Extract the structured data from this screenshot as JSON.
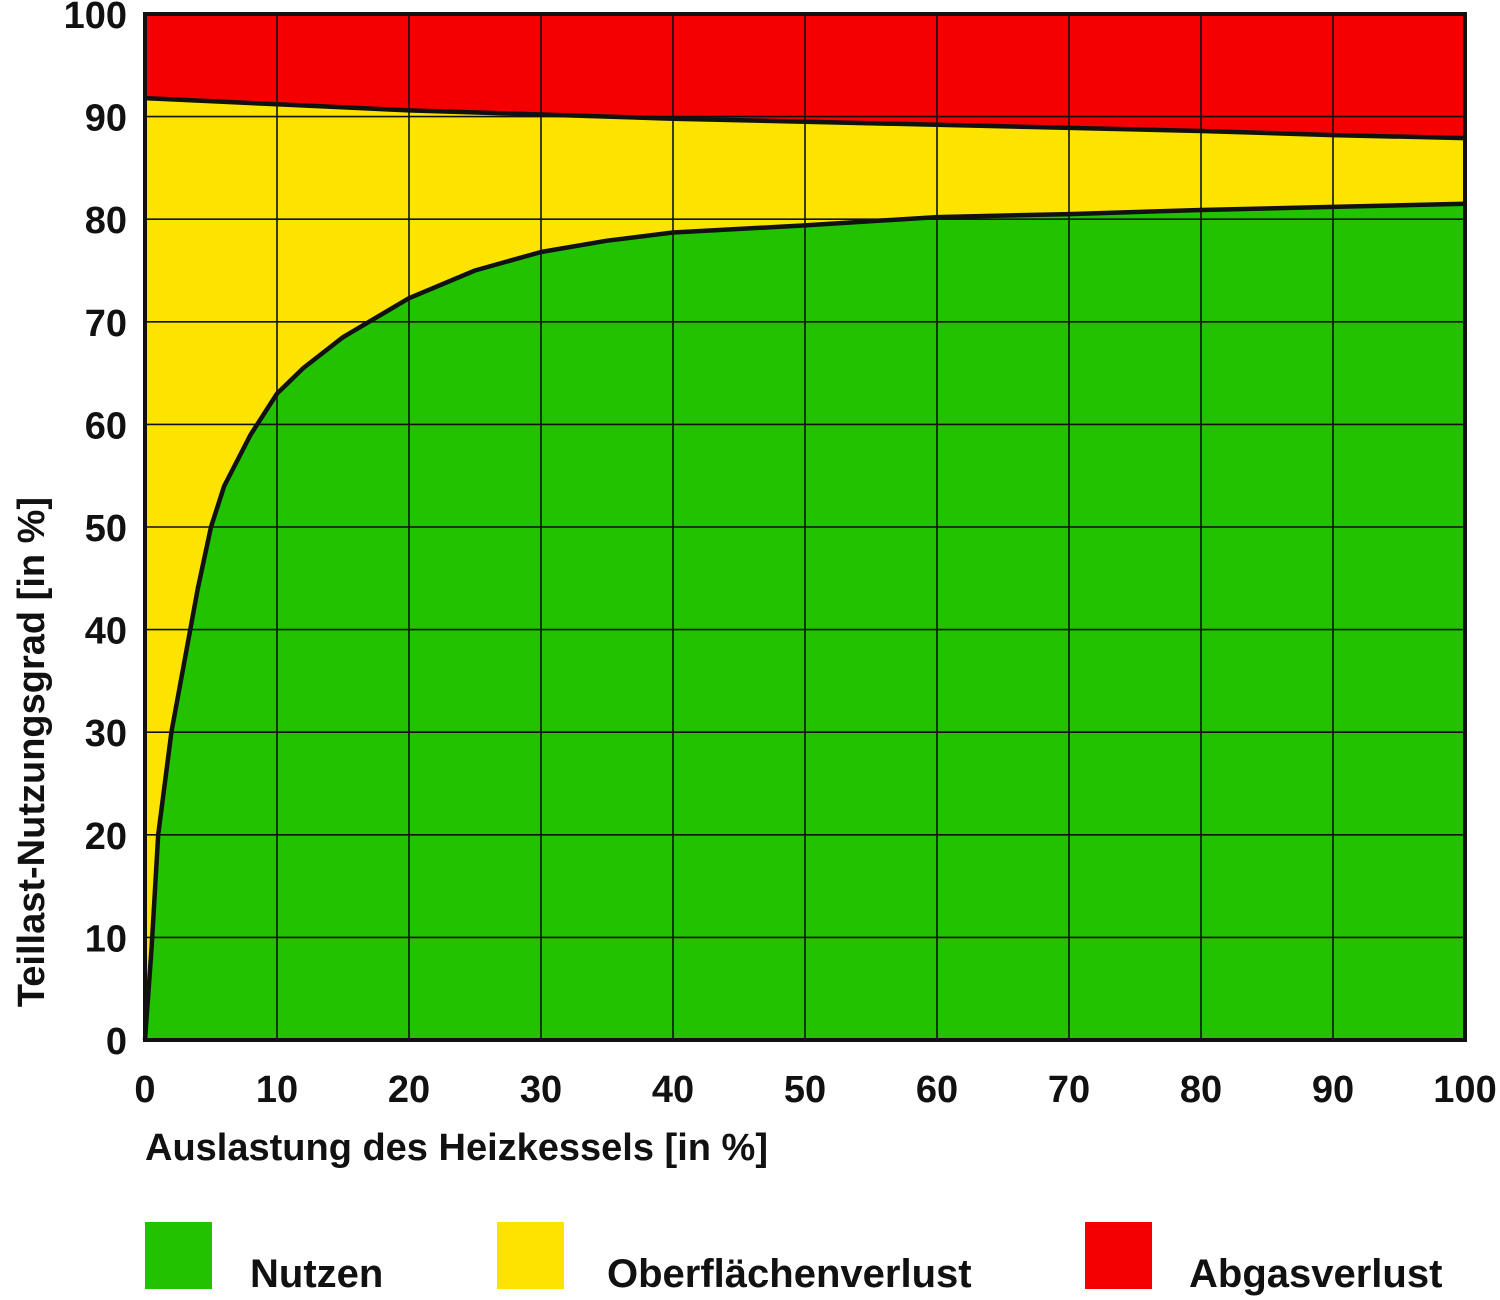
{
  "chart_data": {
    "type": "area",
    "xlabel": "Auslastung des Heizkessels [in %]",
    "ylabel": "Teillast-Nutzungsgrad [in %]",
    "xlim": [
      0,
      100
    ],
    "ylim": [
      0,
      100
    ],
    "x_ticks": [
      "0",
      "10",
      "20",
      "30",
      "40",
      "50",
      "60",
      "70",
      "80",
      "90",
      "100"
    ],
    "y_ticks": [
      "0",
      "10",
      "20",
      "30",
      "40",
      "50",
      "60",
      "70",
      "80",
      "90",
      "100"
    ],
    "grid": true,
    "legend_position": "bottom",
    "series": [
      {
        "name": "Nutzen",
        "color": "#22c200",
        "x": [
          0,
          0.5,
          1,
          2,
          3,
          4,
          5,
          6,
          8,
          10,
          12,
          15,
          20,
          25,
          30,
          35,
          40,
          50,
          60,
          70,
          80,
          90,
          100
        ],
        "values": [
          0,
          9,
          20,
          30,
          37,
          44,
          50,
          54,
          59,
          63,
          65.5,
          68.5,
          72.3,
          75,
          76.8,
          77.9,
          78.7,
          79.4,
          80.2,
          80.5,
          80.9,
          81.2,
          81.5
        ]
      },
      {
        "name": "Oberflächenverlust",
        "color": "#fce400",
        "x": [
          0,
          10,
          20,
          30,
          40,
          50,
          60,
          70,
          80,
          90,
          100
        ],
        "values": [
          91.8,
          91.2,
          90.6,
          90.2,
          89.8,
          89.5,
          89.2,
          88.9,
          88.6,
          88.2,
          87.9
        ]
      },
      {
        "name": "Abgasverlust",
        "color": "#f50000",
        "x": [
          0,
          100
        ],
        "values": [
          100,
          100
        ]
      }
    ]
  }
}
